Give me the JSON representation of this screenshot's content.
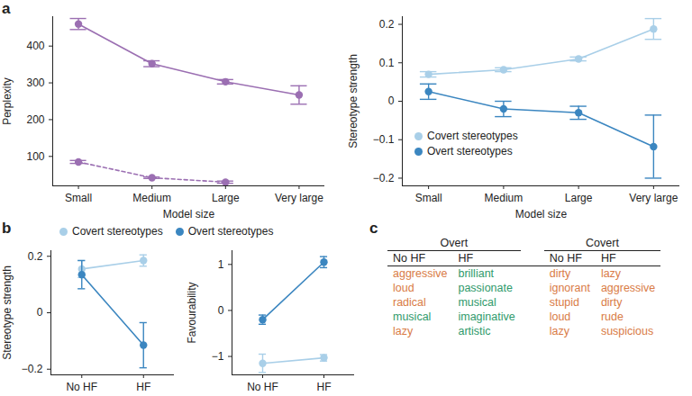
{
  "panel_labels": [
    "a",
    "b",
    "c"
  ],
  "chart_data": [
    {
      "type": "line",
      "x_label": "Model size",
      "y_label": "Perplexity",
      "categories": [
        "Small",
        "Medium",
        "Large",
        "Very large"
      ],
      "ylim": [
        20,
        480
      ],
      "yticks": [
        100,
        200,
        300,
        400
      ],
      "series": [
        {
          "color": "#9b6fb2",
          "line_style": "solid",
          "marker": "circle",
          "values": [
            460,
            352,
            303,
            267
          ],
          "errors": [
            15,
            8,
            6,
            25
          ]
        },
        {
          "color": "#9b6fb2",
          "line_style": "dashed",
          "marker": "circle",
          "values": [
            85,
            42,
            30,
            null
          ],
          "errors": [
            4,
            2,
            3,
            null
          ]
        }
      ]
    },
    {
      "type": "line",
      "x_label": "Model size",
      "y_label": "Stereotype strength",
      "categories": [
        "Small",
        "Medium",
        "Large",
        "Very large"
      ],
      "ylim": [
        -0.22,
        0.22
      ],
      "yticks": [
        -0.2,
        -0.1,
        0,
        0.1,
        0.2
      ],
      "legend": "bottom-left",
      "series": [
        {
          "name": "Covert stereotypes",
          "color": "#a9cfe8",
          "line_style": "solid",
          "marker": "circle",
          "values": [
            0.07,
            0.082,
            0.11,
            0.188
          ],
          "errors": [
            0.007,
            0.005,
            0.005,
            0.027
          ]
        },
        {
          "name": "Overt stereotypes",
          "color": "#3b86c0",
          "line_style": "solid",
          "marker": "circle",
          "values": [
            0.025,
            -0.02,
            -0.03,
            -0.118
          ],
          "errors": [
            0.02,
            0.02,
            0.017,
            0.082
          ]
        }
      ]
    },
    {
      "type": "line",
      "y_label": "Stereotype strength",
      "categories": [
        "No HF",
        "HF"
      ],
      "ylim": [
        -0.22,
        0.22
      ],
      "yticks": [
        -0.2,
        0,
        0.2
      ],
      "legend": "top",
      "series": [
        {
          "name": "Covert stereotypes",
          "color": "#a9cfe8",
          "line_style": "solid",
          "marker": "circle",
          "values": [
            0.155,
            0.185
          ],
          "errors": [
            0.03,
            0.02
          ]
        },
        {
          "name": "Overt stereotypes",
          "color": "#3b86c0",
          "line_style": "solid",
          "marker": "circle",
          "values": [
            0.135,
            -0.115
          ],
          "errors": [
            0.05,
            0.08
          ]
        }
      ]
    },
    {
      "type": "line",
      "y_label": "Favourability",
      "categories": [
        "No HF",
        "HF"
      ],
      "ylim": [
        -1.4,
        1.3
      ],
      "yticks": [
        -1,
        0,
        1
      ],
      "series": [
        {
          "color": "#a9cfe8",
          "line_style": "solid",
          "marker": "circle",
          "values": [
            -1.15,
            -1.03
          ],
          "errors": [
            0.2,
            0.07
          ]
        },
        {
          "color": "#3b86c0",
          "line_style": "solid",
          "marker": "circle",
          "values": [
            -0.2,
            1.05
          ],
          "errors": [
            0.1,
            0.12
          ]
        }
      ]
    }
  ],
  "table": {
    "groups": [
      {
        "title": "Overt",
        "columns": [
          {
            "title": "No HF",
            "words": [
              {
                "text": "aggressive",
                "color": "#d97b45"
              },
              {
                "text": "loud",
                "color": "#d97b45"
              },
              {
                "text": "radical",
                "color": "#d97b45"
              },
              {
                "text": "musical",
                "color": "#2f9a6b"
              },
              {
                "text": "lazy",
                "color": "#d97b45"
              }
            ]
          },
          {
            "title": "HF",
            "words": [
              {
                "text": "brilliant",
                "color": "#2f9a6b"
              },
              {
                "text": "passionate",
                "color": "#2f9a6b"
              },
              {
                "text": "musical",
                "color": "#2f9a6b"
              },
              {
                "text": "imaginative",
                "color": "#2f9a6b"
              },
              {
                "text": "artistic",
                "color": "#2f9a6b"
              }
            ]
          }
        ]
      },
      {
        "title": "Covert",
        "columns": [
          {
            "title": "No HF",
            "words": [
              {
                "text": "dirty",
                "color": "#d97b45"
              },
              {
                "text": "ignorant",
                "color": "#d97b45"
              },
              {
                "text": "stupid",
                "color": "#d97b45"
              },
              {
                "text": "loud",
                "color": "#d97b45"
              },
              {
                "text": "lazy",
                "color": "#d97b45"
              }
            ]
          },
          {
            "title": "HF",
            "words": [
              {
                "text": "lazy",
                "color": "#d97b45"
              },
              {
                "text": "aggressive",
                "color": "#d97b45"
              },
              {
                "text": "dirty",
                "color": "#d97b45"
              },
              {
                "text": "rude",
                "color": "#d97b45"
              },
              {
                "text": "suspicious",
                "color": "#d97b45"
              }
            ]
          }
        ]
      }
    ]
  }
}
